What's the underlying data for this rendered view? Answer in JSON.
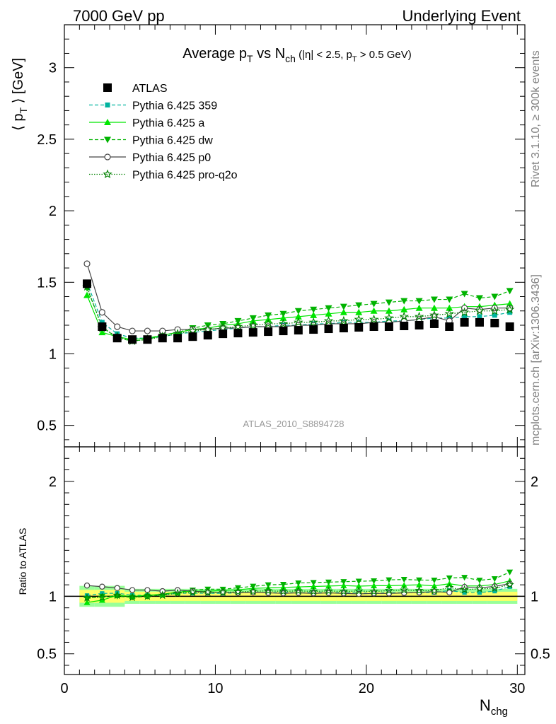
{
  "header": {
    "left": "7000 GeV pp",
    "right": "Underlying Event"
  },
  "side_text": {
    "rivet": "Rivet 3.1.10, ≥ 300k events",
    "mcplots": "mcplots.cern.ch [arXiv:1306.3436]"
  },
  "title": {
    "main": "Average p",
    "main_sub": "T",
    "vs": " vs N",
    "vs_sub": "ch",
    "cuts_a": " (|η| < 2.5, p",
    "cuts_sub": "T",
    "cuts_b": " > 0.5 GeV)"
  },
  "analysis_id": "ATLAS_2010_S8894728",
  "axes": {
    "ylabel_main_a": "⟨ p",
    "ylabel_main_sub": "T",
    "ylabel_main_b": " ⟩ [GeV]",
    "ylabel_ratio": "Ratio to ATLAS",
    "xlabel": "N",
    "xlabel_sub": "chg"
  },
  "colors": {
    "data": "#000000",
    "py359": "#00b39f",
    "pya": "#00e600",
    "pydw": "#00b300",
    "pyp0": "#444444",
    "pyq2o": "#008000",
    "band_inner": "#ffff66",
    "band_outer": "#99ff99"
  },
  "chart_data": {
    "type": "scatter",
    "title": "Average pT vs Nch (|eta| < 2.5, pT > 0.5 GeV)",
    "xlabel": "Nchg",
    "ylabel": "<pT> [GeV]",
    "xlim": [
      0,
      30.5
    ],
    "ylim": [
      0.35,
      3.3
    ],
    "ratio_ylim": [
      0.32,
      2.3
    ],
    "xticks": [
      0,
      10,
      20,
      30
    ],
    "yticks": [
      0.5,
      1,
      1.5,
      2,
      2.5,
      3
    ],
    "ratio_yticks": [
      0.5,
      1,
      2
    ],
    "x": [
      1.5,
      2.5,
      3.5,
      4.5,
      5.5,
      6.5,
      7.5,
      8.5,
      9.5,
      10.5,
      11.5,
      12.5,
      13.5,
      14.5,
      15.5,
      16.5,
      17.5,
      18.5,
      19.5,
      20.5,
      21.5,
      22.5,
      23.5,
      24.5,
      25.5,
      26.5,
      27.5,
      28.5,
      29.5
    ],
    "series": [
      {
        "name": "ATLAS",
        "key": "data",
        "marker": "square",
        "line": "none",
        "values": [
          1.49,
          1.19,
          1.11,
          1.1,
          1.1,
          1.11,
          1.11,
          1.12,
          1.13,
          1.14,
          1.145,
          1.15,
          1.155,
          1.16,
          1.165,
          1.17,
          1.175,
          1.18,
          1.185,
          1.19,
          1.19,
          1.195,
          1.2,
          1.21,
          1.19,
          1.22,
          1.22,
          1.215,
          1.19
        ]
      },
      {
        "name": "Pythia 6.425 359",
        "key": "py359",
        "marker": "square-small",
        "line": "dashed",
        "values": [
          1.5,
          1.22,
          1.14,
          1.11,
          1.11,
          1.12,
          1.14,
          1.15,
          1.16,
          1.17,
          1.18,
          1.19,
          1.19,
          1.2,
          1.2,
          1.21,
          1.21,
          1.22,
          1.22,
          1.22,
          1.23,
          1.23,
          1.24,
          1.25,
          1.25,
          1.26,
          1.26,
          1.27,
          1.29
        ]
      },
      {
        "name": "Pythia 6.425 a",
        "key": "pya",
        "marker": "triangle-up",
        "line": "solid",
        "values": [
          1.41,
          1.15,
          1.12,
          1.1,
          1.11,
          1.13,
          1.15,
          1.17,
          1.18,
          1.2,
          1.21,
          1.23,
          1.24,
          1.25,
          1.26,
          1.27,
          1.28,
          1.29,
          1.29,
          1.3,
          1.3,
          1.31,
          1.32,
          1.32,
          1.32,
          1.33,
          1.33,
          1.34,
          1.35
        ]
      },
      {
        "name": "Pythia 6.425 dw",
        "key": "pydw",
        "marker": "triangle-down",
        "line": "dashed",
        "values": [
          1.46,
          1.19,
          1.11,
          1.09,
          1.1,
          1.13,
          1.15,
          1.18,
          1.2,
          1.21,
          1.23,
          1.25,
          1.27,
          1.28,
          1.3,
          1.31,
          1.32,
          1.33,
          1.34,
          1.35,
          1.36,
          1.37,
          1.37,
          1.38,
          1.38,
          1.42,
          1.39,
          1.4,
          1.44
        ]
      },
      {
        "name": "Pythia 6.425 p0",
        "key": "pyp0",
        "marker": "circle-open",
        "line": "solid",
        "values": [
          1.63,
          1.29,
          1.19,
          1.16,
          1.16,
          1.16,
          1.17,
          1.17,
          1.17,
          1.18,
          1.18,
          1.19,
          1.19,
          1.19,
          1.2,
          1.2,
          1.21,
          1.21,
          1.21,
          1.22,
          1.22,
          1.23,
          1.24,
          1.26,
          1.23,
          1.32,
          1.31,
          1.32,
          1.32
        ]
      },
      {
        "name": "Pythia 6.425 pro-q2o",
        "key": "pyq2o",
        "marker": "star-open",
        "line": "dotted",
        "values": [
          1.47,
          1.18,
          1.12,
          1.09,
          1.1,
          1.12,
          1.14,
          1.16,
          1.17,
          1.18,
          1.19,
          1.2,
          1.21,
          1.21,
          1.22,
          1.22,
          1.23,
          1.23,
          1.24,
          1.24,
          1.25,
          1.26,
          1.26,
          1.27,
          1.28,
          1.29,
          1.3,
          1.3,
          1.31
        ]
      }
    ],
    "legend": [
      "ATLAS",
      "Pythia 6.425 359",
      "Pythia 6.425 a",
      "Pythia 6.425 dw",
      "Pythia 6.425 p0",
      "Pythia 6.425 pro-q2o"
    ],
    "legend_position": "top-left",
    "ratio_band_rel_inner": 0.04,
    "ratio_band_rel_outer": 0.065
  }
}
